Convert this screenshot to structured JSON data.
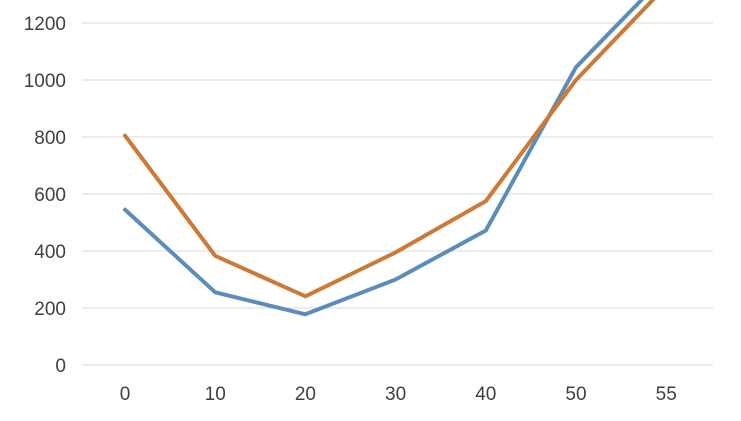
{
  "chart_data": {
    "type": "line",
    "title": "",
    "xlabel": "",
    "ylabel": "",
    "x": [
      0,
      10,
      20,
      30,
      40,
      50,
      55
    ],
    "x_tick_labels": [
      "0",
      "10",
      "20",
      "30",
      "40",
      "50",
      "55"
    ],
    "y_tick_labels": [
      "0",
      "200",
      "400",
      "600",
      "800",
      "1000",
      "1200"
    ],
    "y_ticks": [
      0,
      200,
      400,
      600,
      800,
      1000,
      1200
    ],
    "ylim": [
      0,
      1200
    ],
    "grid": true,
    "legend": "none",
    "series": [
      {
        "color": "#5b8db8",
        "values": [
          545,
          255,
          178,
          300,
          472,
          1045,
          1370
        ]
      },
      {
        "color": "#cc7a37",
        "values": [
          805,
          383,
          241,
          395,
          575,
          1000,
          1330
        ]
      }
    ],
    "colors": {
      "gridline": "#d9d9d9",
      "tick_text": "#404040"
    }
  }
}
